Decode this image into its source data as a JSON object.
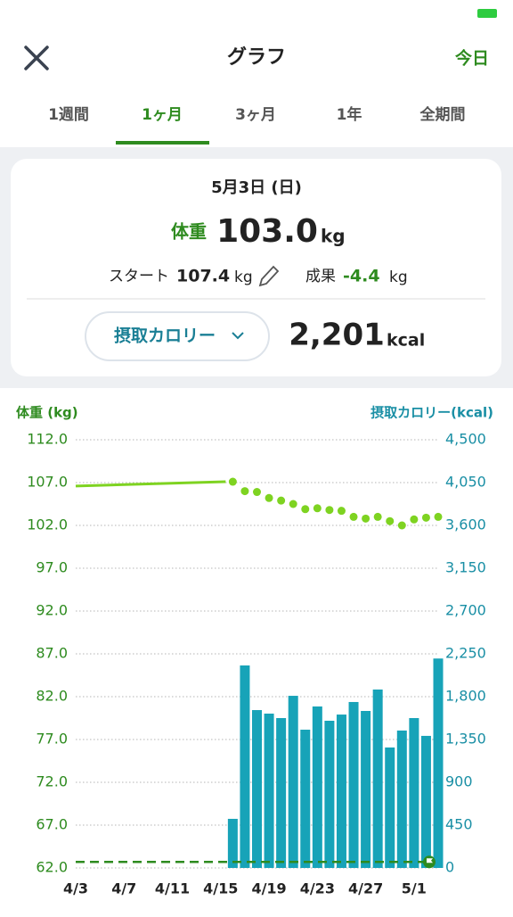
{
  "header": {
    "title": "グラフ",
    "today": "今日"
  },
  "tabs": {
    "items": [
      "1週間",
      "1ヶ月",
      "3ヶ月",
      "1年",
      "全期間"
    ],
    "active": 1
  },
  "summary": {
    "date": "5月3日 (日)",
    "weight_label": "体重",
    "weight": "103.0",
    "weight_unit": "kg",
    "start_label": "スタート",
    "start": "107.4",
    "start_unit": "kg",
    "result_label": "成果",
    "result": "-4.4",
    "result_unit": "kg",
    "calorie_button": "摂取カロリー",
    "calories": "2,201",
    "calorie_unit": "kcal"
  },
  "chart_data": {
    "type": "combo",
    "ylabel": "体重 (kg)",
    "y2label": "摂取カロリー(kcal)",
    "categories": [
      "4/3",
      null,
      null,
      null,
      "4/7",
      null,
      null,
      null,
      "4/11",
      null,
      null,
      null,
      "4/15",
      null,
      null,
      null,
      "4/19",
      null,
      null,
      null,
      "4/23",
      null,
      null,
      null,
      "4/27",
      null,
      null,
      null,
      "5/1",
      null,
      null
    ],
    "ylim": [
      62,
      112
    ],
    "yticks": [
      {
        "value": 62,
        "label": "62.0"
      },
      {
        "value": 67,
        "label": "67.0"
      },
      {
        "value": 72,
        "label": "72.0"
      },
      {
        "value": 77,
        "label": "77.0"
      },
      {
        "value": 82,
        "label": "82.0"
      },
      {
        "value": 87,
        "label": "87.0"
      },
      {
        "value": 92,
        "label": "92.0"
      },
      {
        "value": 97,
        "label": "97.0"
      },
      {
        "value": 102,
        "label": "102.0"
      },
      {
        "value": 107,
        "label": "107.0"
      },
      {
        "value": 112,
        "label": "112.0"
      }
    ],
    "y2lim": [
      0,
      4500
    ],
    "y2ticks": [
      0,
      450,
      900,
      {
        "value": 1350,
        "label": "1,350"
      },
      {
        "value": 1800,
        "label": "1,800"
      },
      {
        "value": 2250,
        "label": "2,250"
      },
      {
        "value": 2700,
        "label": "2,700"
      },
      {
        "value": 3150,
        "label": "3,150"
      },
      {
        "value": 3600,
        "label": "3,600"
      },
      {
        "value": 4050,
        "label": "4,050"
      },
      {
        "value": 4500,
        "label": "4,500"
      }
    ],
    "grid": true,
    "series": [
      {
        "style": "bar",
        "axis": "y2",
        "color": "#17a3b8",
        "values": [
          null,
          null,
          null,
          null,
          null,
          null,
          null,
          null,
          null,
          null,
          null,
          null,
          null,
          516,
          2128,
          1659,
          1622,
          1575,
          1809,
          1453,
          1697,
          1547,
          1612,
          1744,
          1650,
          1875,
          1266,
          1444,
          1575,
          1388,
          2201
        ]
      },
      {
        "style": "dots",
        "axis": "y",
        "color": "#7ed321",
        "values": [
          106.6,
          null,
          null,
          null,
          null,
          null,
          null,
          null,
          null,
          null,
          null,
          null,
          null,
          107.1,
          106.0,
          105.9,
          105.2,
          104.9,
          104.5,
          103.9,
          104.0,
          103.8,
          103.7,
          103.0,
          102.8,
          103.0,
          102.5,
          102.0,
          102.7,
          102.9,
          103.0
        ]
      }
    ],
    "target_line": {
      "value": 62.7,
      "color": "#2e8b1f"
    }
  }
}
